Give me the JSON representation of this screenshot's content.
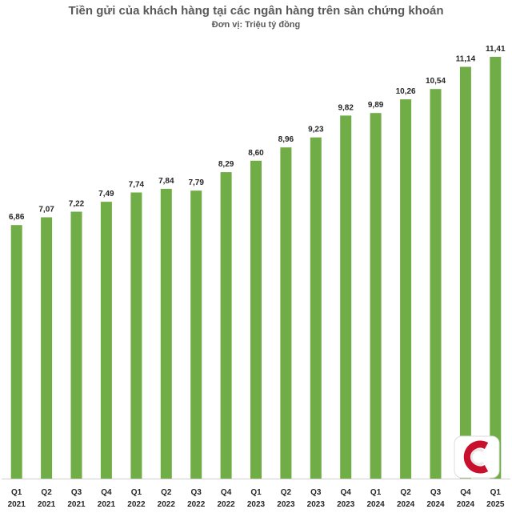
{
  "chart_data": {
    "type": "bar",
    "title": "Tiền gửi của khách hàng tại các ngân hàng trên sàn chứng khoán",
    "subtitle": "Đơn vị: Triệu tỷ đồng",
    "categories": [
      [
        "Q1",
        "2021"
      ],
      [
        "Q2",
        "2021"
      ],
      [
        "Q3",
        "2021"
      ],
      [
        "Q4",
        "2021"
      ],
      [
        "Q1",
        "2022"
      ],
      [
        "Q2",
        "2022"
      ],
      [
        "Q3",
        "2022"
      ],
      [
        "Q4",
        "2022"
      ],
      [
        "Q1",
        "2023"
      ],
      [
        "Q2",
        "2023"
      ],
      [
        "Q3",
        "2023"
      ],
      [
        "Q4",
        "2023"
      ],
      [
        "Q1",
        "2024"
      ],
      [
        "Q2",
        "2024"
      ],
      [
        "Q3",
        "2024"
      ],
      [
        "Q4",
        "2024"
      ],
      [
        "Q1",
        "2025"
      ]
    ],
    "values": [
      6.86,
      7.07,
      7.22,
      7.49,
      7.74,
      7.84,
      7.79,
      8.29,
      8.6,
      8.96,
      9.23,
      9.82,
      9.89,
      10.26,
      10.54,
      11.14,
      11.41
    ],
    "value_labels": [
      "6,86",
      "7,07",
      "7,22",
      "7,49",
      "7,74",
      "7,84",
      "7,79",
      "8,29",
      "8,60",
      "8,96",
      "9,23",
      "9,82",
      "9,89",
      "10,26",
      "10,54",
      "11,14",
      "11,41"
    ],
    "ylim": [
      0,
      11.41
    ],
    "bar_color": "#70ad47",
    "grid": false,
    "legend": "none"
  },
  "logo": {
    "icon": "c-logo-icon",
    "color": "#c8102e"
  }
}
